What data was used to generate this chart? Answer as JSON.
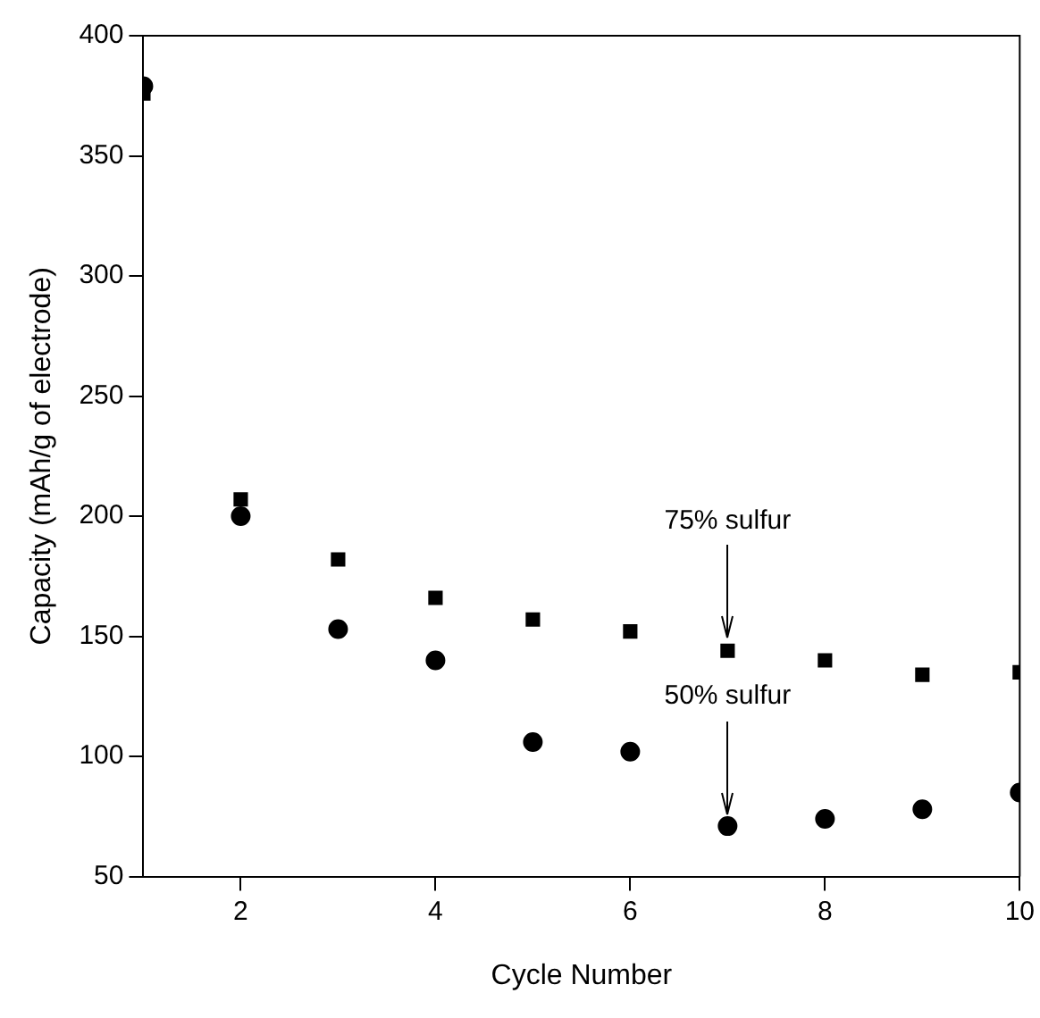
{
  "chart_data": {
    "type": "scatter",
    "xlabel": "Cycle Number",
    "ylabel": "Capacity (mAh/g of electrode)",
    "x": [
      1,
      2,
      3,
      4,
      5,
      6,
      7,
      8,
      9,
      10
    ],
    "series": [
      {
        "color": "#000000",
        "marker": "square",
        "values": [
          376,
          207,
          182,
          166,
          157,
          152,
          144,
          140,
          134,
          135
        ]
      },
      {
        "color": "#000000",
        "marker": "circle",
        "values": [
          379,
          200,
          153,
          140,
          106,
          102,
          71,
          74,
          78,
          85
        ]
      }
    ],
    "xlim": [
      1,
      10
    ],
    "xticks": [
      2,
      4,
      6,
      8,
      10
    ],
    "ylim": [
      50,
      400
    ],
    "yticks": [
      50,
      100,
      150,
      200,
      250,
      300,
      350,
      400
    ],
    "grid": false,
    "legend": false,
    "annotations": [
      {
        "text": "75% sulfur",
        "x": 7,
        "y": 144
      },
      {
        "text": "50% sulfur",
        "x": 7,
        "y": 71
      }
    ]
  }
}
